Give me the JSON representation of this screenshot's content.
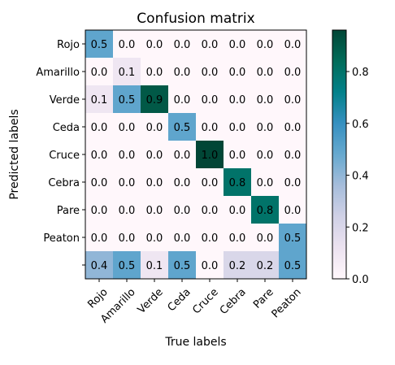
{
  "chart_data": {
    "type": "heatmap",
    "title": "Confusion matrix",
    "xlabel": "True labels",
    "ylabel": "Predicted labels",
    "x_categories": [
      "Rojo",
      "Amarillo",
      "Verde",
      "Ceda",
      "Cruce",
      "Cebra",
      "Pare",
      "Peaton"
    ],
    "y_categories": [
      "Rojo",
      "Amarillo",
      "Verde",
      "Ceda",
      "Cruce",
      "Cebra",
      "Pare",
      "Peaton",
      ""
    ],
    "matrix": [
      [
        0.5,
        0.0,
        0.0,
        0.0,
        0.0,
        0.0,
        0.0,
        0.0
      ],
      [
        0.0,
        0.1,
        0.0,
        0.0,
        0.0,
        0.0,
        0.0,
        0.0
      ],
      [
        0.1,
        0.5,
        0.9,
        0.0,
        0.0,
        0.0,
        0.0,
        0.0
      ],
      [
        0.0,
        0.0,
        0.0,
        0.5,
        0.0,
        0.0,
        0.0,
        0.0
      ],
      [
        0.0,
        0.0,
        0.0,
        0.0,
        1.0,
        0.0,
        0.0,
        0.0
      ],
      [
        0.0,
        0.0,
        0.0,
        0.0,
        0.0,
        0.8,
        0.0,
        0.0
      ],
      [
        0.0,
        0.0,
        0.0,
        0.0,
        0.0,
        0.0,
        0.8,
        0.0
      ],
      [
        0.0,
        0.0,
        0.0,
        0.0,
        0.0,
        0.0,
        0.0,
        0.5
      ],
      [
        0.4,
        0.5,
        0.1,
        0.5,
        0.0,
        0.2,
        0.2,
        0.5
      ]
    ],
    "colormap": "PuBuGn",
    "colorbar": {
      "range": [
        0.0,
        0.96
      ],
      "ticks": [
        0.0,
        0.2,
        0.4,
        0.6,
        0.8
      ]
    }
  }
}
